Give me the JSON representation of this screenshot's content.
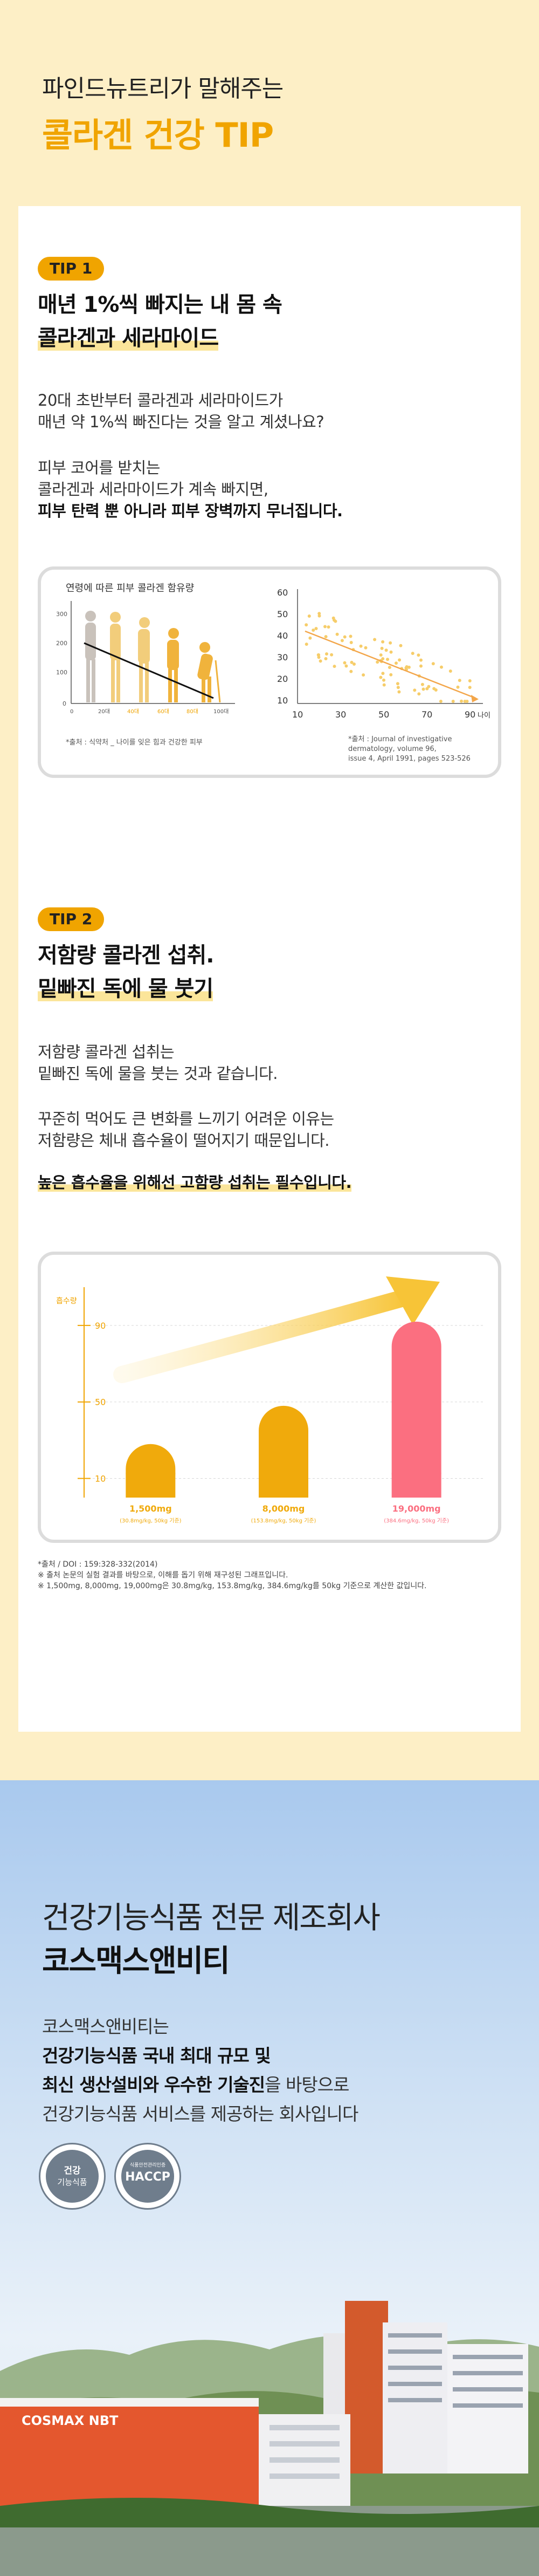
{
  "header": {
    "subtitle": "파인드뉴트리가 말해주는",
    "title": "콜라겐 건강 TIP"
  },
  "tip1": {
    "badge": "TIP 1",
    "heading_line1": "매년 1%씩 빠지는 내 몸 속",
    "heading_line2": "콜라겐과 세라마이드",
    "para1_line1": "20대 초반부터 콜라겐과 세라마이드가",
    "para1_line2": "매년 약 1%씩 빠진다는 것을 알고 계셨나요?",
    "para2_line1": "피부 코어를 받치는",
    "para2_line2": "콜라겐과 세라마이드가 계속 빠지면,",
    "para2_line3": "피부 탄력 뿐 아니라 피부 장벽까지 무너집니다.",
    "chart_left": {
      "title": "연령에 따른 피부 콜라겐 함유량",
      "y_ticks": [
        "300",
        "200",
        "100",
        "0"
      ],
      "x_ticks": [
        "0",
        "20대",
        "40대",
        "60대",
        "80대",
        "100대"
      ],
      "source": "*출처 : 식약처 _ 나이를 잊은 힘과 건강한 피부"
    },
    "chart_right": {
      "y_ticks": [
        "60",
        "50",
        "40",
        "30",
        "20",
        "10"
      ],
      "x_ticks": [
        "10",
        "30",
        "50",
        "70",
        "90"
      ],
      "x_unit": "나이",
      "source_line1": "*출처 : Journal of investigative dermatology, volume 96,",
      "source_line2": "issue 4, April 1991, pages 523-526"
    }
  },
  "tip2": {
    "badge": "TIP 2",
    "heading_line1": "저함량 콜라겐 섭취.",
    "heading_line2": "밑빠진 독에 물 붓기",
    "para1_line1": "저함량 콜라겐 섭취는",
    "para1_line2": "밑빠진 독에 물을 붓는 것과 같습니다.",
    "para2_line1": "꾸준히 먹어도 큰 변화를 느끼기 어려운 이유는",
    "para2_line2": "저함량은 체내 흡수율이 떨어지기 때문입니다.",
    "emphasis": "높은 흡수율을 위해선 고함량 섭취는 필수입니다.",
    "footnote_line1": "*출처 / DOI : 159:328-332(2014)",
    "footnote_line2": "※ 출처 논문의 실험 결과를 바탕으로, 이해를 돕기 위해 재구성된 그래프입니다.",
    "footnote_line3": "※ 1,500mg, 8,000mg, 19,000mg은 30.8mg/kg, 153.8mg/kg, 384.6mg/kg를 50kg 기준으로 계산한 값입니다."
  },
  "chart_data": {
    "type": "bar",
    "ylabel": "흡수량",
    "y_ticks": [
      10,
      50,
      90
    ],
    "ylim": [
      0,
      110
    ],
    "categories": [
      "1,500mg",
      "8,000mg",
      "19,000mg"
    ],
    "sublabels": [
      "(30.8mg/kg, 50kg 기준)",
      "(153.8mg/kg, 50kg 기준)",
      "(384.6mg/kg, 50kg 기준)"
    ],
    "values": [
      28,
      48,
      92
    ],
    "colors": [
      "#f0aa0c",
      "#f0aa0c",
      "#fb6f80"
    ],
    "grid": true
  },
  "company": {
    "title_line1": "건강기능식품 전문 제조회사",
    "title_line2": "코스맥스앤비티",
    "para_line1": "코스맥스앤비티는",
    "para_line2": "건강기능식품 국내 최대 규모 및",
    "para_line3_bold": "최신 생산설비와 우수한 기술진",
    "para_line3_rest": "을 바탕으로",
    "para_line4": "건강기능식품 서비스를 제공하는 회사입니다",
    "cert1_line1": "건강",
    "cert1_line2": "기능식품",
    "cert2_top": "식품안전관리인증",
    "cert2_main": "HACCP",
    "sign": "COSMAX NBT"
  },
  "colors": {
    "accent": "#f0a400",
    "pink": "#fb6f80",
    "cream": "#fdefc6"
  }
}
